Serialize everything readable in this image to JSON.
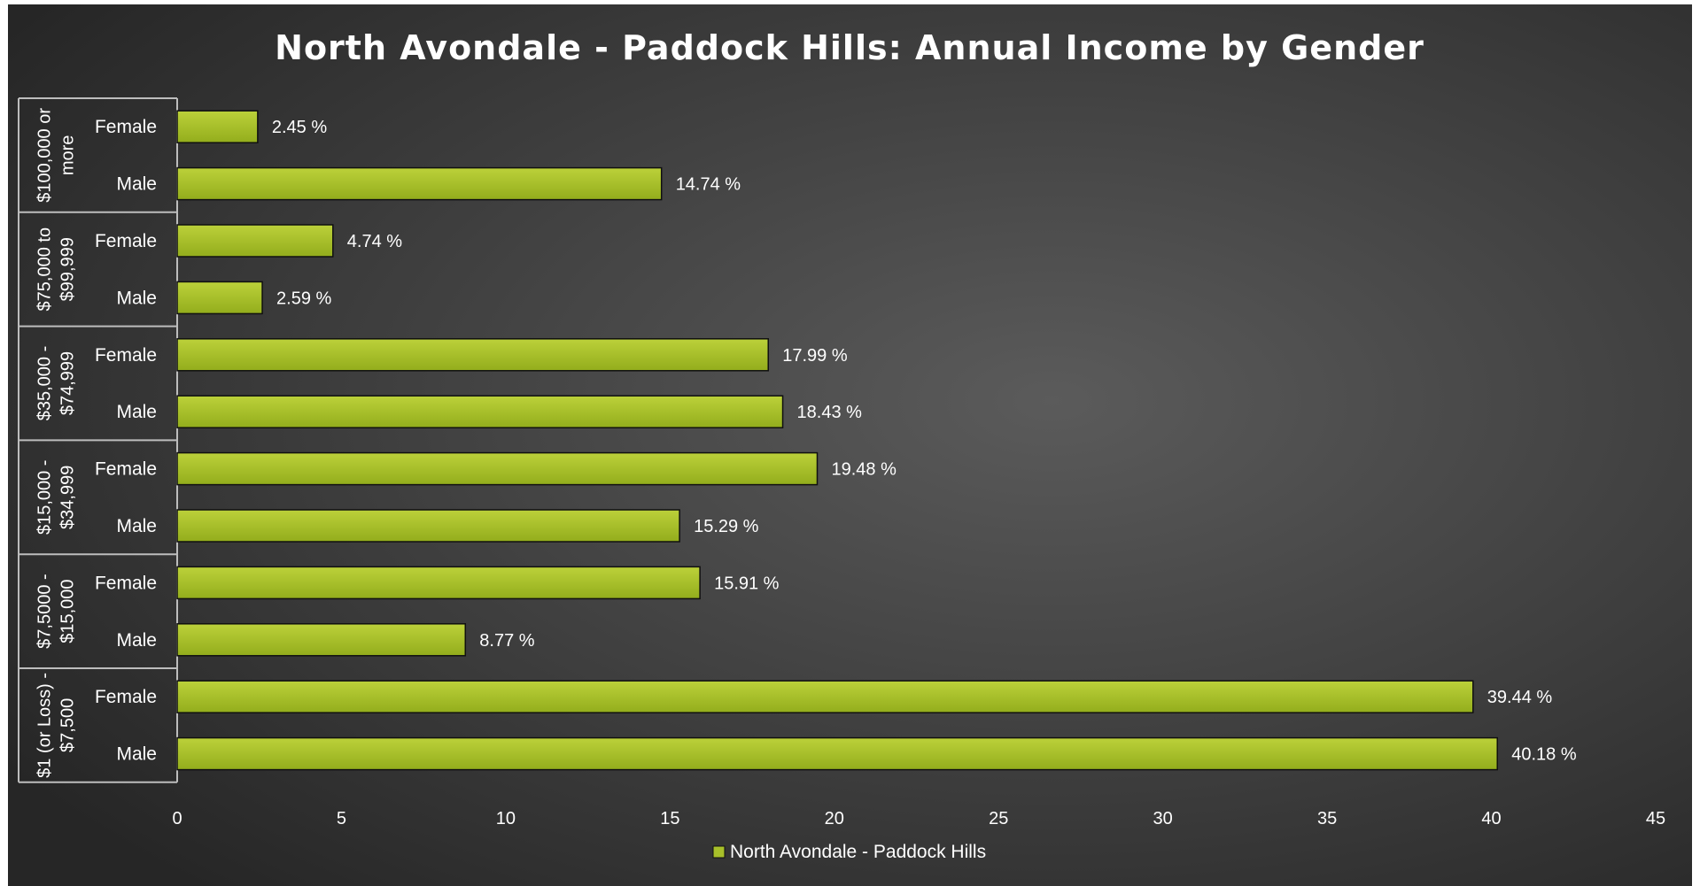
{
  "chart_data": {
    "type": "bar",
    "orientation": "horizontal",
    "title": "North Avondale - Paddock Hills: Annual Income by Gender",
    "xlabel": "",
    "ylabel": "",
    "xlim": [
      0,
      45
    ],
    "x_ticks": [
      0,
      5,
      10,
      15,
      20,
      25,
      30,
      35,
      40,
      45
    ],
    "grid": false,
    "legend_position": "bottom",
    "value_suffix": " %",
    "groups": [
      {
        "label": "$100,000 or more",
        "label_lines": [
          "$100,000 or",
          "more"
        ],
        "categories": [
          "Female",
          "Male"
        ]
      },
      {
        "label": "$75,000 to $99,999",
        "label_lines": [
          "$75,000 to",
          "$99,999"
        ],
        "categories": [
          "Female",
          "Male"
        ]
      },
      {
        "label": "$35,000 - $74,999",
        "label_lines": [
          "$35,000 -",
          "$74,999"
        ],
        "categories": [
          "Female",
          "Male"
        ]
      },
      {
        "label": "$15,000 - $34,999",
        "label_lines": [
          "$15,000 -",
          "$34,999"
        ],
        "categories": [
          "Female",
          "Male"
        ]
      },
      {
        "label": "$7,5000 - $15,000",
        "label_lines": [
          "$7,5000 -",
          "$15,000"
        ],
        "categories": [
          "Female",
          "Male"
        ]
      },
      {
        "label": "$1 (or Loss) - $7,500",
        "label_lines": [
          "$1 (or Loss) -",
          "$7,500"
        ],
        "categories": [
          "Female",
          "Male"
        ]
      }
    ],
    "series": [
      {
        "name": "North Avondale - Paddock Hills",
        "color": "#a8c02a",
        "values": [
          2.45,
          14.74,
          4.74,
          2.59,
          17.99,
          18.43,
          19.48,
          15.29,
          15.91,
          8.77,
          39.44,
          40.18
        ],
        "value_labels": [
          "2.45 %",
          "14.74 %",
          "4.74 %",
          "2.59 %",
          "17.99 %",
          "18.43 %",
          "19.48 %",
          "15.29 %",
          "15.91 %",
          "8.77 %",
          "39.44 %",
          "40.18 %"
        ]
      }
    ],
    "colors": {
      "background_center": "#5b5b5b",
      "background_edge": "#262626",
      "bar_fill_light": "#bcd13a",
      "bar_fill_dark": "#93ad1c",
      "bar_outline": "#101010",
      "text": "#ffffff",
      "axis_line": "#bdbdbd"
    }
  }
}
